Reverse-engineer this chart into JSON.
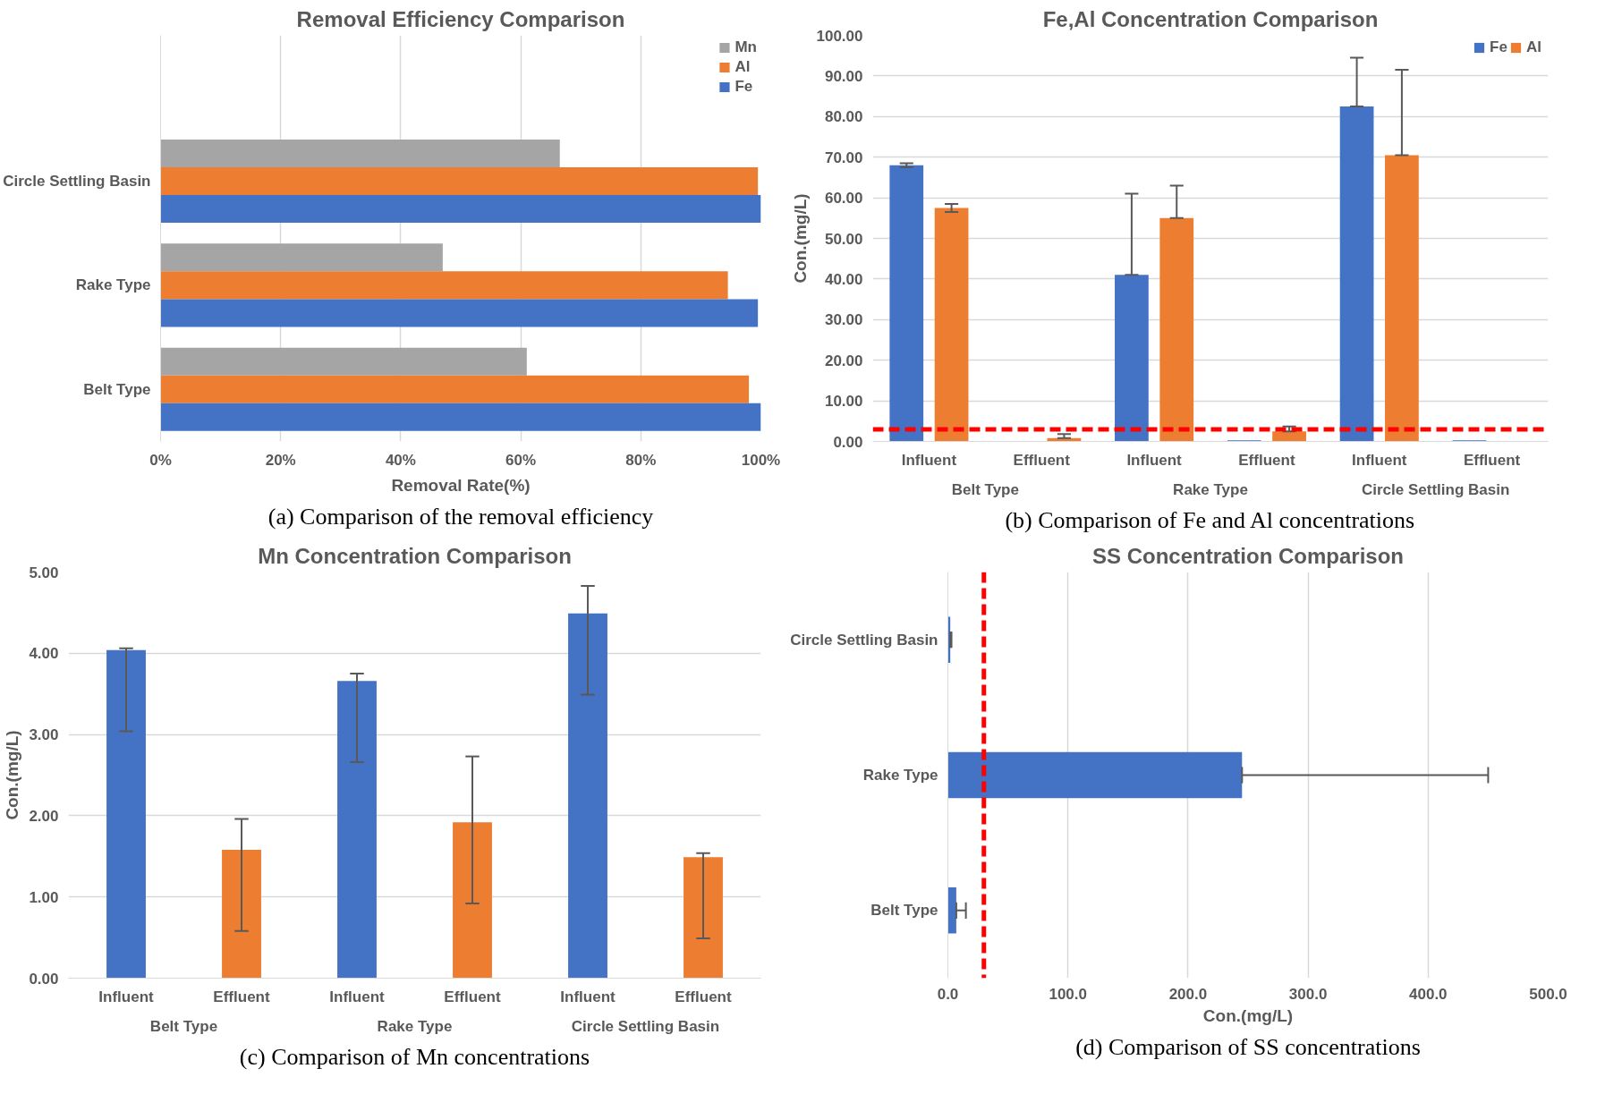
{
  "chart_data": [
    {
      "type": "bar",
      "title": "Removal Efficiency Comparison",
      "orientation": "horizontal",
      "xlabel": "Removal Rate(%)",
      "categories": [
        "Circle Settling Basin",
        "Rake Type",
        "Belt Type"
      ],
      "series": [
        {
          "name": "Mn",
          "color": "#a5a5a5",
          "values": [
            66.5,
            47,
            61
          ]
        },
        {
          "name": "Al",
          "color": "#ed7d31",
          "values": [
            99.5,
            94.5,
            98
          ]
        },
        {
          "name": "Fe",
          "color": "#4472c4",
          "values": [
            100,
            99.5,
            100
          ]
        }
      ],
      "xlim": [
        0,
        100
      ],
      "xticks": [
        {
          "value": 0,
          "label": "0%"
        },
        {
          "value": 20,
          "label": "20%"
        },
        {
          "value": 40,
          "label": "40%"
        },
        {
          "value": 60,
          "label": "60%"
        },
        {
          "value": 80,
          "label": "80%"
        },
        {
          "value": 100,
          "label": "100%"
        }
      ],
      "grid": "x",
      "legend": "top right",
      "annotations": [
        "(a) Comparison of the removal efficiency"
      ]
    },
    {
      "type": "bar",
      "title": "Fe,Al Concentration Comparison",
      "ylabel": "Con.(mg/L)",
      "categories": [
        "Influent",
        "Effluent",
        "Influent",
        "Effluent",
        "Influent",
        "Effluent"
      ],
      "series": [
        {
          "name": "Fe",
          "color": "#4472c4",
          "values": [
            68,
            null,
            41,
            0.3,
            82.5,
            0.3
          ],
          "errors": [
            [
              67.5,
              68.5
            ],
            null,
            [
              41,
              61
            ],
            null,
            [
              82.5,
              94.5
            ],
            null
          ]
        },
        {
          "name": "Al",
          "color": "#ed7d31",
          "values": [
            57.5,
            0.8,
            55,
            2.5,
            70.5,
            null
          ],
          "errors": [
            [
              56.5,
              58.5
            ],
            [
              0.8,
              1.8
            ],
            [
              55,
              63
            ],
            [
              2.5,
              3.7
            ],
            [
              70.5,
              91.5
            ],
            null
          ]
        }
      ],
      "ylim": [
        0,
        100
      ],
      "yticks": [
        {
          "value": 0,
          "label": "0.00"
        },
        {
          "value": 10,
          "label": "10.00"
        },
        {
          "value": 20,
          "label": "20.00"
        },
        {
          "value": 30,
          "label": "30.00"
        },
        {
          "value": 40,
          "label": "40.00"
        },
        {
          "value": 50,
          "label": "50.00"
        },
        {
          "value": 60,
          "label": "60.00"
        },
        {
          "value": 70,
          "label": "70.00"
        },
        {
          "value": 80,
          "label": "80.00"
        },
        {
          "value": 90,
          "label": "90.00"
        },
        {
          "value": 100,
          "label": "100.00"
        }
      ],
      "grid": "y",
      "legend": "top right",
      "ref_lines": [
        {
          "axis": "y",
          "value": 3,
          "color": "#ff0000",
          "line_style": "dashed"
        }
      ],
      "annotations": [
        "Belt Type",
        "Rake Type",
        "Circle Settling Basin",
        "(b) Comparison of Fe and Al concentrations"
      ]
    },
    {
      "type": "bar",
      "title": "Mn Concentration Comparison",
      "ylabel": "Con.(mg/L)",
      "categories": [
        "Influent",
        "Effluent",
        "Influent",
        "Effluent",
        "Influent",
        "Effluent"
      ],
      "values": [
        4.04,
        1.58,
        3.66,
        1.92,
        4.49,
        1.49
      ],
      "colors": [
        "#4472c4",
        "#ed7d31",
        "#4472c4",
        "#ed7d31",
        "#4472c4",
        "#ed7d31"
      ],
      "errors": [
        [
          3.04,
          4.06
        ],
        [
          0.58,
          1.96
        ],
        [
          2.66,
          3.75
        ],
        [
          0.92,
          2.73
        ],
        [
          3.49,
          4.83
        ],
        [
          0.49,
          1.54
        ]
      ],
      "ylim": [
        0,
        5
      ],
      "yticks": [
        {
          "value": 0,
          "label": "0.00"
        },
        {
          "value": 1,
          "label": "1.00"
        },
        {
          "value": 2,
          "label": "2.00"
        },
        {
          "value": 3,
          "label": "3.00"
        },
        {
          "value": 4,
          "label": "4.00"
        },
        {
          "value": 5,
          "label": "5.00"
        }
      ],
      "grid": "y",
      "annotations": [
        "Belt Type",
        "Rake Type",
        "Circle Settling Basin",
        "(c) Comparison of Mn concentrations"
      ]
    },
    {
      "type": "bar",
      "title": "SS Concentration Comparison",
      "orientation": "horizontal",
      "xlabel": "Con.(mg/L)",
      "categories": [
        "Circle Settling Basin",
        "Rake Type",
        "Belt Type"
      ],
      "values": [
        2,
        245,
        7
      ],
      "color": "#4472c4",
      "errors": [
        [
          2,
          3
        ],
        [
          245,
          450
        ],
        [
          7,
          15
        ]
      ],
      "xlim": [
        0,
        500
      ],
      "xticks": [
        {
          "value": 0,
          "label": "0.0"
        },
        {
          "value": 100,
          "label": "100.0"
        },
        {
          "value": 200,
          "label": "200.0"
        },
        {
          "value": 300,
          "label": "300.0"
        },
        {
          "value": 400,
          "label": "400.0"
        },
        {
          "value": 500,
          "label": "500.0"
        }
      ],
      "grid": "x",
      "ref_lines": [
        {
          "axis": "x",
          "value": 30,
          "color": "#ff0000",
          "line_style": "dashed"
        }
      ],
      "annotations": [
        "(d) Comparison of SS concentrations"
      ]
    }
  ]
}
